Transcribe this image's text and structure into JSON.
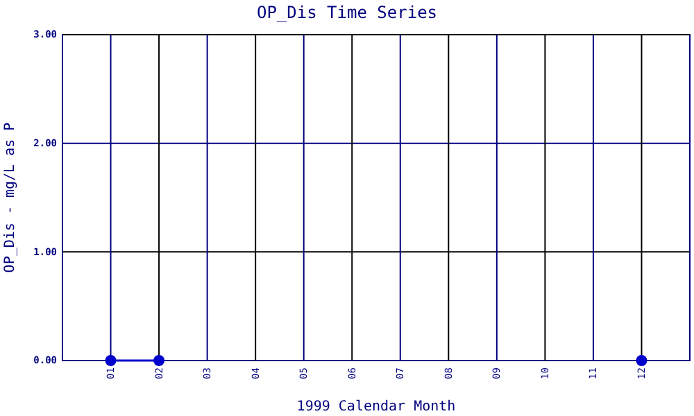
{
  "chart_data": {
    "type": "line",
    "title": "OP_Dis Time Series",
    "xlabel": "1999 Calendar Month",
    "ylabel": "OP_Dis - mg/L as P",
    "categories": [
      "01",
      "02",
      "03",
      "04",
      "05",
      "06",
      "07",
      "08",
      "09",
      "10",
      "11",
      "12"
    ],
    "series": [
      {
        "color": "#0000cc",
        "values": [
          0,
          0,
          null,
          null,
          null,
          null,
          null,
          null,
          null,
          null,
          null,
          0
        ]
      }
    ],
    "ylim": [
      0,
      3
    ],
    "yticks": [
      {
        "value": 0,
        "label": "0.00"
      },
      {
        "value": 1,
        "label": "1.00"
      },
      {
        "value": 2,
        "label": "2.00"
      },
      {
        "value": 3,
        "label": "3.00"
      }
    ],
    "grid": true,
    "marker": "circle",
    "line_style": "solid"
  }
}
